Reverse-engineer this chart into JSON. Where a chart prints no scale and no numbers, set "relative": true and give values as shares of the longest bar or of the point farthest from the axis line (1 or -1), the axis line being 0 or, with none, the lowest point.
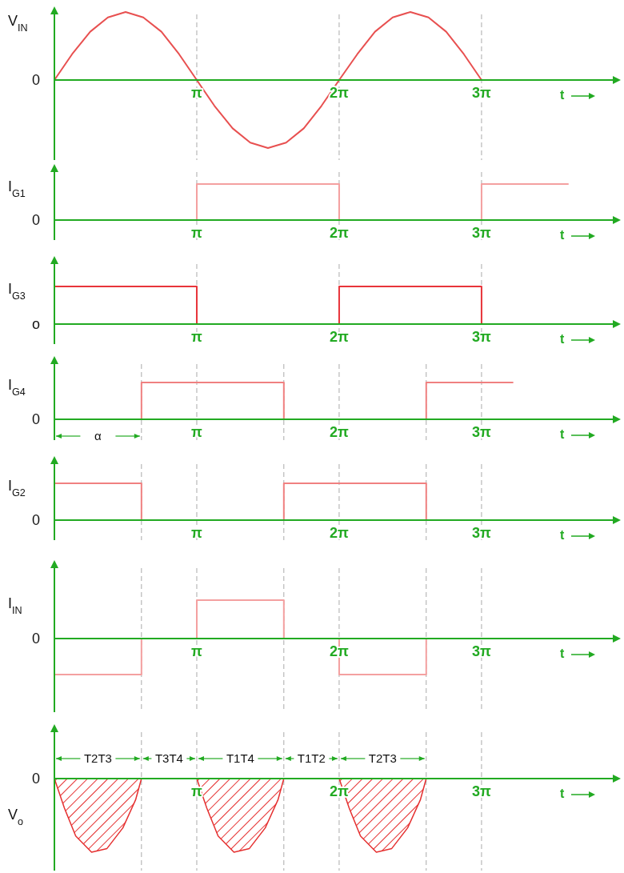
{
  "chart_data": [
    {
      "type": "line",
      "ylabel": "V$_{IN}$",
      "xlabel": "t",
      "relative": true,
      "xlim": [
        0,
        12.35
      ],
      "xticks": [
        {
          "value": 3.14,
          "label": "π"
        },
        {
          "value": 6.28,
          "label": "2π"
        },
        {
          "value": 9.42,
          "label": "3π"
        }
      ],
      "x": [
        0,
        0.39,
        0.79,
        1.18,
        1.57,
        1.96,
        2.36,
        2.75,
        3.14,
        3.53,
        3.93,
        4.32,
        4.71,
        5.11,
        5.5,
        5.89,
        6.28,
        6.68,
        7.07,
        7.46,
        7.85,
        8.25,
        8.64,
        9.03,
        9.42
      ],
      "series": [
        {
          "color": "#e85050",
          "values": [
            0,
            0.38,
            0.71,
            0.92,
            1,
            0.92,
            0.71,
            0.38,
            0,
            -0.38,
            -0.71,
            -0.92,
            -1,
            -0.92,
            -0.71,
            -0.38,
            0,
            0.38,
            0.71,
            0.92,
            1,
            0.92,
            0.71,
            0.38,
            0
          ]
        }
      ],
      "annotations": [
        "0"
      ],
      "ref_lines": [
        {
          "axis": "x",
          "value": 3.14,
          "color": "#aaaaaa",
          "line_style": "dashed"
        },
        {
          "axis": "x",
          "value": 6.28,
          "color": "#aaaaaa",
          "line_style": "dashed"
        },
        {
          "axis": "x",
          "value": 9.42,
          "color": "#aaaaaa",
          "line_style": "dashed"
        }
      ]
    },
    {
      "type": "line",
      "ylabel": "I$_{G1}$",
      "xlabel": "t",
      "relative": true,
      "xlim": [
        0,
        12.35
      ],
      "xticks": [
        {
          "value": 3.14,
          "label": "π"
        },
        {
          "value": 6.28,
          "label": "2π"
        },
        {
          "value": 9.42,
          "label": "3π"
        }
      ],
      "x": [
        3.14,
        3.14,
        6.28,
        6.28,
        7.85,
        9.42,
        9.42,
        11.34
      ],
      "series": [
        {
          "color": "#f4a0a0",
          "values": [
            0,
            1,
            1,
            0,
            null,
            0,
            1,
            1
          ]
        }
      ],
      "annotations": [
        "0"
      ],
      "ref_lines": [
        {
          "axis": "x",
          "value": 3.14,
          "color": "#aaaaaa",
          "line_style": "dashed"
        },
        {
          "axis": "x",
          "value": 6.28,
          "color": "#aaaaaa",
          "line_style": "dashed"
        },
        {
          "axis": "x",
          "value": 9.42,
          "color": "#aaaaaa",
          "line_style": "dashed"
        }
      ]
    },
    {
      "type": "line",
      "ylabel": "I$_{G3}$",
      "xlabel": "t",
      "relative": true,
      "xlim": [
        0,
        12.35
      ],
      "xticks": [
        {
          "value": 3.14,
          "label": "π"
        },
        {
          "value": 6.28,
          "label": "2π"
        },
        {
          "value": 9.42,
          "label": "3π"
        }
      ],
      "x": [
        0,
        3.14,
        3.14,
        4.71,
        6.28,
        6.28,
        9.42,
        9.42
      ],
      "series": [
        {
          "color": "#e8343a",
          "values": [
            1,
            1,
            0,
            null,
            0,
            1,
            1,
            0
          ]
        }
      ],
      "annotations": [
        "o"
      ],
      "ref_lines": [
        {
          "axis": "x",
          "value": 3.14,
          "color": "#aaaaaa",
          "line_style": "dashed"
        },
        {
          "axis": "x",
          "value": 6.28,
          "color": "#aaaaaa",
          "line_style": "dashed"
        },
        {
          "axis": "x",
          "value": 9.42,
          "color": "#aaaaaa",
          "line_style": "dashed"
        }
      ]
    },
    {
      "type": "line",
      "ylabel": "I$_{G4}$",
      "xlabel": "t",
      "relative": true,
      "xlim": [
        0,
        12.35
      ],
      "xticks": [
        {
          "value": 3.14,
          "label": "π"
        },
        {
          "value": 6.28,
          "label": "2π"
        },
        {
          "value": 9.42,
          "label": "3π"
        }
      ],
      "x": [
        1.92,
        1.92,
        5.06,
        5.06,
        6.6,
        8.2,
        8.2,
        10.12
      ],
      "series": [
        {
          "color": "#f08080",
          "values": [
            0,
            1,
            1,
            0,
            null,
            0,
            1,
            1
          ]
        }
      ],
      "annotations": [
        "0",
        "α"
      ],
      "ref_lines": [
        {
          "axis": "x",
          "value": 1.92,
          "color": "#aaaaaa",
          "line_style": "dashed"
        },
        {
          "axis": "x",
          "value": 3.14,
          "color": "#aaaaaa",
          "line_style": "dashed"
        },
        {
          "axis": "x",
          "value": 5.06,
          "color": "#aaaaaa",
          "line_style": "dashed"
        },
        {
          "axis": "x",
          "value": 6.28,
          "color": "#aaaaaa",
          "line_style": "dashed"
        },
        {
          "axis": "x",
          "value": 8.2,
          "color": "#aaaaaa",
          "line_style": "dashed"
        },
        {
          "axis": "x",
          "value": 9.42,
          "color": "#aaaaaa",
          "line_style": "dashed"
        }
      ]
    },
    {
      "type": "line",
      "ylabel": "I$_{G2}$",
      "xlabel": "t",
      "relative": true,
      "xlim": [
        0,
        12.35
      ],
      "xticks": [
        {
          "value": 3.14,
          "label": "π"
        },
        {
          "value": 6.28,
          "label": "2π"
        },
        {
          "value": 9.42,
          "label": "3π"
        }
      ],
      "x": [
        0,
        1.92,
        1.92,
        3.46,
        5.06,
        5.06,
        8.2,
        8.2
      ],
      "series": [
        {
          "color": "#f08080",
          "values": [
            1,
            1,
            0,
            null,
            0,
            1,
            1,
            0
          ]
        }
      ],
      "annotations": [
        "0"
      ],
      "ref_lines": [
        {
          "axis": "x",
          "value": 1.92,
          "color": "#aaaaaa",
          "line_style": "dashed"
        },
        {
          "axis": "x",
          "value": 3.14,
          "color": "#aaaaaa",
          "line_style": "dashed"
        },
        {
          "axis": "x",
          "value": 5.06,
          "color": "#aaaaaa",
          "line_style": "dashed"
        },
        {
          "axis": "x",
          "value": 6.28,
          "color": "#aaaaaa",
          "line_style": "dashed"
        },
        {
          "axis": "x",
          "value": 8.2,
          "color": "#aaaaaa",
          "line_style": "dashed"
        },
        {
          "axis": "x",
          "value": 9.42,
          "color": "#aaaaaa",
          "line_style": "dashed"
        }
      ]
    },
    {
      "type": "line",
      "ylabel": "I$_{IN}$",
      "xlabel": "t",
      "relative": true,
      "xlim": [
        0,
        12.35
      ],
      "xticks": [
        {
          "value": 3.14,
          "label": "π"
        },
        {
          "value": 6.28,
          "label": "2π"
        },
        {
          "value": 9.42,
          "label": "3π"
        }
      ],
      "x": [
        0,
        1.92,
        1.92,
        2.51,
        3.14,
        3.14,
        5.06,
        5.06,
        5.65,
        6.28,
        6.28,
        8.2,
        8.2
      ],
      "series": [
        {
          "color": "#f4a0a0",
          "values": [
            -0.94,
            -0.94,
            0,
            null,
            0,
            1,
            1,
            0,
            null,
            0,
            -0.94,
            -0.94,
            0
          ]
        }
      ],
      "annotations": [
        "0"
      ],
      "ref_lines": [
        {
          "axis": "x",
          "value": 1.92,
          "color": "#aaaaaa",
          "line_style": "dashed"
        },
        {
          "axis": "x",
          "value": 3.14,
          "color": "#aaaaaa",
          "line_style": "dashed"
        },
        {
          "axis": "x",
          "value": 5.06,
          "color": "#aaaaaa",
          "line_style": "dashed"
        },
        {
          "axis": "x",
          "value": 6.28,
          "color": "#aaaaaa",
          "line_style": "dashed"
        },
        {
          "axis": "x",
          "value": 8.2,
          "color": "#aaaaaa",
          "line_style": "dashed"
        },
        {
          "axis": "x",
          "value": 9.42,
          "color": "#aaaaaa",
          "line_style": "dashed"
        }
      ]
    },
    {
      "type": "area",
      "ylabel": "V$_{o}$",
      "xlabel": "t",
      "relative": true,
      "xlim": [
        0,
        12.35
      ],
      "xticks": [
        {
          "value": 3.14,
          "label": "π"
        },
        {
          "value": 6.28,
          "label": "2π"
        },
        {
          "value": 9.42,
          "label": "3π"
        }
      ],
      "x": [
        0,
        0.22,
        0.47,
        0.82,
        1.16,
        1.51,
        1.79,
        1.92,
        2.51,
        3.14,
        3.36,
        3.61,
        3.96,
        4.3,
        4.65,
        4.93,
        5.06,
        5.65,
        6.28,
        6.5,
        6.75,
        7.1,
        7.44,
        7.79,
        8.07,
        8.2
      ],
      "series": [
        {
          "color": "#e53030",
          "values": [
            0,
            -0.4,
            -0.78,
            -1,
            -0.95,
            -0.67,
            -0.29,
            0,
            null,
            0,
            -0.4,
            -0.78,
            -1,
            -0.95,
            -0.67,
            -0.29,
            0,
            null,
            0,
            -0.4,
            -0.78,
            -1,
            -0.95,
            -0.67,
            -0.29,
            0
          ]
        }
      ],
      "annotations": [
        "0",
        "T2T3",
        "T3T4",
        "T1T4",
        "T1T2",
        "T2T3"
      ],
      "ref_lines": [
        {
          "axis": "x",
          "value": 1.92,
          "color": "#aaaaaa",
          "line_style": "dashed"
        },
        {
          "axis": "x",
          "value": 3.14,
          "color": "#aaaaaa",
          "line_style": "dashed"
        },
        {
          "axis": "x",
          "value": 5.06,
          "color": "#aaaaaa",
          "line_style": "dashed"
        },
        {
          "axis": "x",
          "value": 6.28,
          "color": "#aaaaaa",
          "line_style": "dashed"
        },
        {
          "axis": "x",
          "value": 8.2,
          "color": "#aaaaaa",
          "line_style": "dashed"
        },
        {
          "axis": "x",
          "value": 9.42,
          "color": "#aaaaaa",
          "line_style": "dashed"
        }
      ]
    }
  ]
}
